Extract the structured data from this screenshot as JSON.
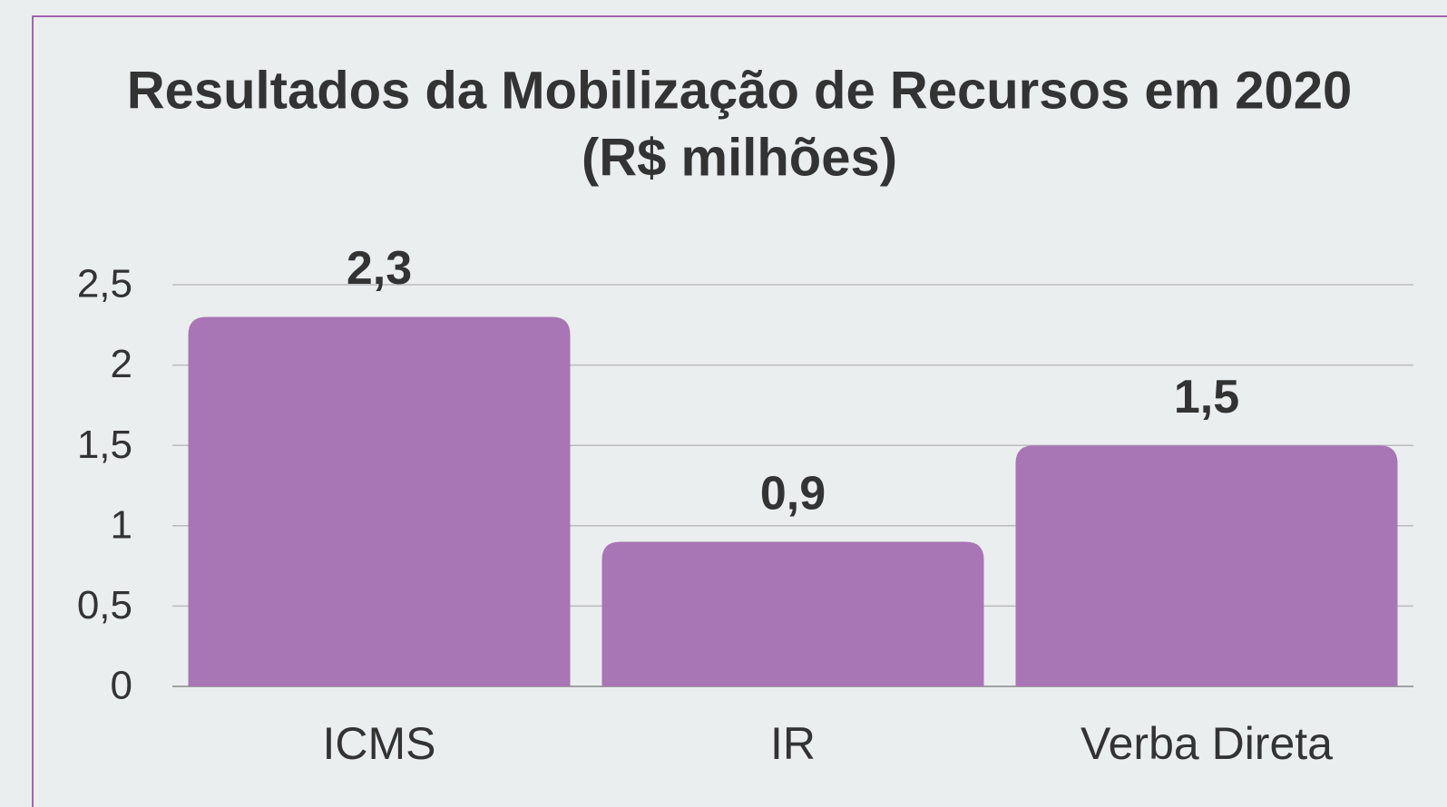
{
  "chart_data": {
    "type": "bar",
    "title": "Resultados da Mobilização de Recursos em 2020",
    "subtitle": "(R$ milhões)",
    "categories": [
      "ICMS",
      "IR",
      "Verba Direta"
    ],
    "values": [
      2.3,
      0.9,
      1.5
    ],
    "value_labels": [
      "2,3",
      "0,9",
      "1,5"
    ],
    "color": "#a875b5",
    "ylim": [
      0,
      2.5
    ],
    "yticks": [
      0,
      {
        "value": 0.5,
        "label": "0,5"
      },
      1,
      {
        "value": 1.5,
        "label": "1,5"
      },
      2,
      {
        "value": 2.5,
        "label": "2,5"
      }
    ],
    "grid": true
  }
}
